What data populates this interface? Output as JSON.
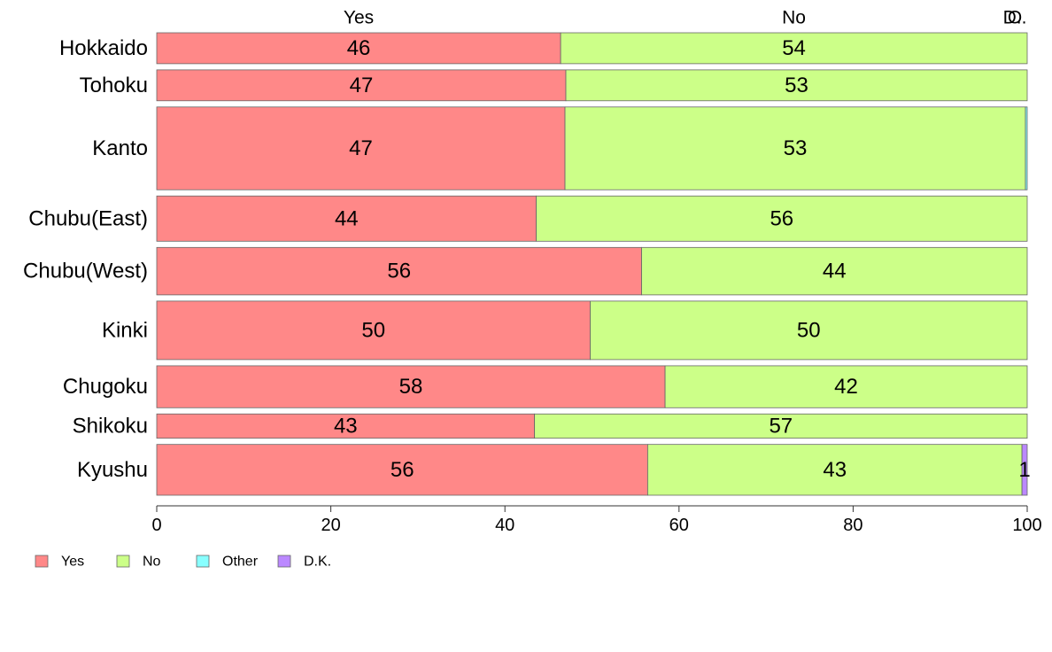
{
  "chart_data": {
    "type": "bar",
    "orientation": "horizontal",
    "stacked": true,
    "categories": [
      "Hokkaido",
      "Tohoku",
      "Kanto",
      "Chubu(East)",
      "Chubu(West)",
      "Kinki",
      "Chugoku",
      "Shikoku",
      "Kyushu"
    ],
    "series": [
      {
        "name": "Yes",
        "color": "#ff8888",
        "values": [
          46.4,
          47.0,
          46.9,
          43.6,
          55.7,
          49.8,
          58.4,
          43.4,
          56.4
        ]
      },
      {
        "name": "No",
        "color": "#ccff88",
        "values": [
          53.6,
          53.0,
          52.9,
          56.4,
          44.3,
          50.2,
          41.6,
          56.6,
          43.0
        ]
      },
      {
        "name": "Other",
        "color": "#88ffff",
        "values": [
          0,
          0,
          0.2,
          0,
          0,
          0,
          0,
          0,
          0
        ]
      },
      {
        "name": "D.K.",
        "color": "#bb88ff",
        "values": [
          0,
          0,
          0,
          0,
          0,
          0,
          0,
          0,
          0.6
        ]
      }
    ],
    "data_labels": [
      [
        "46",
        "54",
        "",
        ""
      ],
      [
        "47",
        "53",
        "",
        ""
      ],
      [
        "47",
        "53",
        "",
        ""
      ],
      [
        "44",
        "56",
        "",
        ""
      ],
      [
        "56",
        "44",
        "",
        ""
      ],
      [
        "50",
        "50",
        "",
        ""
      ],
      [
        "58",
        "42",
        "",
        ""
      ],
      [
        "43",
        "57",
        "",
        ""
      ],
      [
        "56",
        "43",
        "",
        "1"
      ]
    ],
    "relative_weights": [
      28,
      28,
      75,
      41,
      43,
      53,
      38,
      22,
      46
    ],
    "top_labels": [
      "Yes",
      "No",
      "O",
      "D.."
    ],
    "xlim": [
      0,
      100
    ],
    "xticks": [
      0,
      20,
      40,
      60,
      80,
      100
    ],
    "title": "",
    "xlabel": "",
    "ylabel": "",
    "legend": {
      "position": "bottom-left",
      "items": [
        "Yes",
        "No",
        "Other",
        "D.K."
      ]
    },
    "grid": false
  }
}
